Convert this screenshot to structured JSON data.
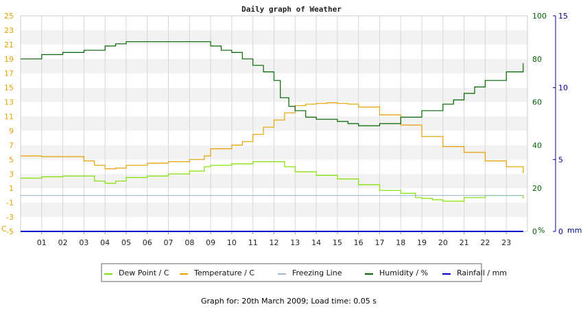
{
  "footer_text": "Graph for: 20th March 2009; Load time: 0.05 s",
  "chart_data": {
    "type": "line",
    "title": "Daily graph of Weather",
    "x_ticks": [
      "01",
      "02",
      "03",
      "04",
      "05",
      "06",
      "07",
      "08",
      "09",
      "10",
      "11",
      "12",
      "13",
      "14",
      "15",
      "16",
      "17",
      "18",
      "19",
      "20",
      "21",
      "22",
      "23"
    ],
    "x_range": [
      0,
      24
    ],
    "grid": true,
    "legend_placement": "bottom-center",
    "axes": {
      "left": {
        "unit": "C",
        "range": [
          -5,
          25
        ],
        "ticks": [
          "25",
          "23",
          "21",
          "19",
          "17",
          "15",
          "13",
          "11",
          "9",
          "7",
          "5",
          "3",
          "1",
          "-1",
          "-3",
          "-5"
        ],
        "color": "#e6a000"
      },
      "right1": {
        "unit": "%",
        "range": [
          0,
          100
        ],
        "ticks": [
          "100",
          "80",
          "60",
          "40",
          "20",
          "0"
        ],
        "color": "#006400"
      },
      "right2": {
        "unit": "mm",
        "range": [
          0,
          15
        ],
        "ticks": [
          "15",
          "10",
          "5",
          "0"
        ],
        "color": "#00008b"
      }
    },
    "series": [
      {
        "name": "Dew Point / C",
        "axis": "left",
        "color": "#80e000",
        "x": [
          0,
          1,
          2,
          2.7,
          3.5,
          4,
          4.5,
          5,
          6,
          7,
          8,
          8.7,
          9,
          10,
          11,
          12,
          12.5,
          13,
          14,
          15,
          16,
          17,
          18,
          18.7,
          19,
          19.5,
          20,
          21,
          22,
          23,
          23.8
        ],
        "y": [
          2.4,
          2.6,
          2.7,
          2.7,
          2.0,
          1.7,
          2.0,
          2.5,
          2.7,
          3.0,
          3.4,
          4.0,
          4.2,
          4.4,
          4.7,
          4.7,
          4.0,
          3.3,
          2.8,
          2.3,
          1.5,
          0.7,
          0.3,
          -0.3,
          -0.4,
          -0.6,
          -0.8,
          -0.3,
          0.0,
          0.0,
          -0.4
        ]
      },
      {
        "name": "Temperature / C",
        "axis": "left",
        "color": "#e6a000",
        "x": [
          0,
          1,
          2,
          2.7,
          3,
          3.5,
          4,
          4.5,
          5,
          6,
          7,
          8,
          8.7,
          9,
          10,
          10.5,
          11,
          11.5,
          12,
          12.5,
          13,
          13.5,
          14,
          14.5,
          15,
          15.5,
          16,
          17,
          18,
          19,
          20,
          21,
          22,
          23,
          23.8
        ],
        "y": [
          5.5,
          5.4,
          5.4,
          5.4,
          4.8,
          4.2,
          3.7,
          3.8,
          4.2,
          4.5,
          4.7,
          5.0,
          5.5,
          6.5,
          7.0,
          7.5,
          8.5,
          9.5,
          10.5,
          11.5,
          12.5,
          12.7,
          12.8,
          12.9,
          12.8,
          12.7,
          12.3,
          11.2,
          9.8,
          8.2,
          6.8,
          6.0,
          4.8,
          4.0,
          3.1
        ]
      },
      {
        "name": "Freezing Line",
        "axis": "left",
        "color": "#9eb8d4",
        "x": [
          0,
          23.8
        ],
        "y": [
          0,
          0
        ]
      },
      {
        "name": "Humidity / %",
        "axis": "right1",
        "color": "#006400",
        "x": [
          0,
          1,
          2,
          3,
          4,
          4.5,
          5,
          6,
          7,
          8,
          9,
          9.5,
          10,
          10.5,
          11,
          11.5,
          12,
          12.3,
          12.7,
          13,
          13.5,
          14,
          14.5,
          15,
          15.5,
          16,
          17,
          18,
          19,
          20,
          20.5,
          21,
          21.5,
          22,
          23,
          23.8
        ],
        "y": [
          80,
          82,
          83,
          84,
          86,
          87,
          88,
          88,
          88,
          88,
          86,
          84,
          83,
          80,
          77,
          74,
          70,
          62,
          58,
          56,
          53,
          52,
          52,
          51,
          50,
          49,
          50,
          53,
          56,
          59,
          61,
          64,
          67,
          70,
          74,
          78
        ]
      },
      {
        "name": "Rainfall / mm",
        "axis": "right2",
        "color": "#0000cc",
        "x": [
          0,
          23.8
        ],
        "y": [
          0,
          0
        ]
      }
    ]
  }
}
